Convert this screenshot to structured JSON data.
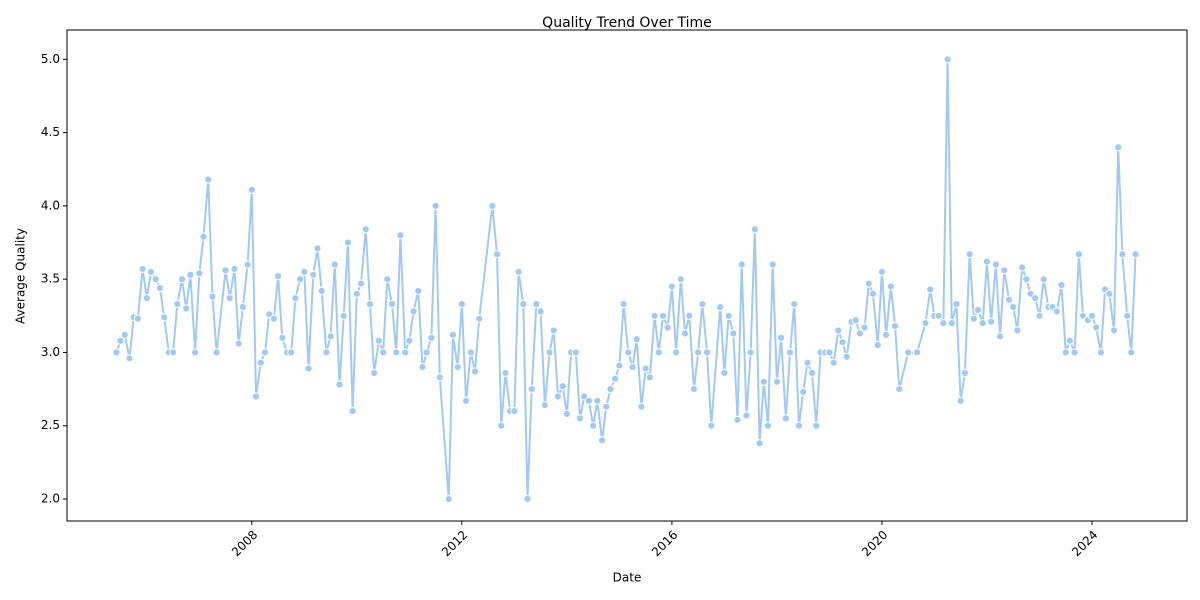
{
  "chart_data": {
    "type": "line",
    "title": "Quality Trend Over Time",
    "x_label": "Date",
    "y_label": "Average Quality",
    "xlim": [
      2004.48,
      2025.81
    ],
    "xticks": [
      2008,
      2012,
      2016,
      2020,
      2024
    ],
    "ylim": [
      1.85,
      5.2
    ],
    "yticks": [
      {
        "value": 2,
        "label": "2.0"
      },
      {
        "value": 2.5,
        "label": "2.5"
      },
      {
        "value": 3,
        "label": "3.0"
      },
      {
        "value": 3.5,
        "label": "3.5"
      },
      {
        "value": 4,
        "label": "4.0"
      },
      {
        "value": 4.5,
        "label": "4.5"
      },
      {
        "value": 5,
        "label": "5.0"
      }
    ],
    "grid": false,
    "x": [
      2005.42,
      2005.5,
      2005.58,
      2005.67,
      2005.75,
      2005.83,
      2005.92,
      2006.0,
      2006.08,
      2006.17,
      2006.25,
      2006.33,
      2006.42,
      2006.5,
      2006.58,
      2006.67,
      2006.75,
      2006.83,
      2006.92,
      2007.0,
      2007.08,
      2007.17,
      2007.25,
      2007.33,
      2007.5,
      2007.58,
      2007.67,
      2007.75,
      2007.83,
      2007.92,
      2008.0,
      2008.08,
      2008.17,
      2008.25,
      2008.33,
      2008.42,
      2008.5,
      2008.58,
      2008.67,
      2008.75,
      2008.83,
      2008.92,
      2009.0,
      2009.08,
      2009.17,
      2009.25,
      2009.33,
      2009.42,
      2009.5,
      2009.58,
      2009.67,
      2009.75,
      2009.83,
      2009.92,
      2010.0,
      2010.08,
      2010.17,
      2010.25,
      2010.33,
      2010.42,
      2010.5,
      2010.58,
      2010.67,
      2010.75,
      2010.83,
      2010.92,
      2011.0,
      2011.08,
      2011.17,
      2011.25,
      2011.33,
      2011.42,
      2011.5,
      2011.58,
      2011.75,
      2011.83,
      2011.92,
      2012.0,
      2012.08,
      2012.17,
      2012.25,
      2012.33,
      2012.58,
      2012.67,
      2012.75,
      2012.83,
      2012.92,
      2013.0,
      2013.08,
      2013.17,
      2013.25,
      2013.33,
      2013.42,
      2013.5,
      2013.58,
      2013.67,
      2013.75,
      2013.83,
      2013.92,
      2014.0,
      2014.08,
      2014.17,
      2014.25,
      2014.33,
      2014.42,
      2014.5,
      2014.58,
      2014.67,
      2014.75,
      2014.83,
      2014.92,
      2015.0,
      2015.08,
      2015.17,
      2015.25,
      2015.33,
      2015.42,
      2015.5,
      2015.58,
      2015.67,
      2015.75,
      2015.83,
      2015.92,
      2016.0,
      2016.08,
      2016.17,
      2016.25,
      2016.33,
      2016.42,
      2016.5,
      2016.58,
      2016.67,
      2016.75,
      2016.92,
      2017.0,
      2017.08,
      2017.17,
      2017.25,
      2017.33,
      2017.42,
      2017.5,
      2017.58,
      2017.67,
      2017.75,
      2017.83,
      2017.92,
      2018.0,
      2018.08,
      2018.17,
      2018.25,
      2018.33,
      2018.42,
      2018.5,
      2018.58,
      2018.67,
      2018.75,
      2018.83,
      2018.92,
      2019.0,
      2019.08,
      2019.17,
      2019.25,
      2019.33,
      2019.42,
      2019.5,
      2019.58,
      2019.67,
      2019.75,
      2019.83,
      2019.92,
      2020.0,
      2020.08,
      2020.17,
      2020.25,
      2020.33,
      2020.5,
      2020.67,
      2020.83,
      2020.92,
      2021.0,
      2021.08,
      2021.17,
      2021.25,
      2021.33,
      2021.42,
      2021.5,
      2021.58,
      2021.67,
      2021.75,
      2021.83,
      2021.92,
      2022.0,
      2022.08,
      2022.17,
      2022.25,
      2022.33,
      2022.42,
      2022.5,
      2022.58,
      2022.67,
      2022.75,
      2022.83,
      2022.92,
      2023.0,
      2023.08,
      2023.17,
      2023.25,
      2023.33,
      2023.42,
      2023.5,
      2023.58,
      2023.67,
      2023.75,
      2023.83,
      2023.92,
      2024.0,
      2024.08,
      2024.17,
      2024.25,
      2024.33,
      2024.42,
      2024.5,
      2024.58,
      2024.67,
      2024.75,
      2024.83
    ],
    "series": [
      {
        "name": "Average Quality",
        "color": "#a1c9f4",
        "values": [
          3.0,
          3.08,
          3.12,
          2.96,
          3.24,
          3.23,
          3.57,
          3.37,
          3.55,
          3.5,
          3.44,
          3.24,
          3.0,
          3.0,
          3.33,
          3.5,
          3.3,
          3.53,
          3.0,
          3.54,
          3.79,
          4.18,
          3.38,
          3.0,
          3.56,
          3.37,
          3.57,
          3.06,
          3.31,
          3.6,
          4.11,
          2.7,
          2.93,
          3.0,
          3.26,
          3.23,
          3.52,
          3.1,
          3.0,
          3.0,
          3.37,
          3.5,
          3.55,
          2.89,
          3.53,
          3.71,
          3.42,
          3.0,
          3.11,
          3.6,
          2.78,
          3.25,
          3.75,
          2.6,
          3.4,
          3.47,
          3.84,
          3.33,
          2.86,
          3.08,
          3.0,
          3.5,
          3.33,
          3.0,
          3.8,
          3.0,
          3.08,
          3.28,
          3.42,
          2.9,
          3.0,
          3.1,
          4.0,
          2.83,
          2.0,
          3.12,
          2.9,
          3.33,
          2.67,
          3.0,
          2.87,
          3.23,
          4.0,
          3.67,
          2.5,
          2.86,
          2.6,
          2.6,
          3.55,
          3.33,
          2.0,
          2.75,
          3.33,
          3.28,
          2.64,
          3.0,
          3.15,
          2.7,
          2.77,
          2.58,
          3.0,
          3.0,
          2.55,
          2.7,
          2.67,
          2.5,
          2.67,
          2.4,
          2.63,
          2.75,
          2.82,
          2.91,
          3.33,
          3.0,
          2.9,
          3.09,
          2.63,
          2.89,
          2.83,
          3.25,
          3.0,
          3.25,
          3.17,
          3.45,
          3.0,
          3.5,
          3.13,
          3.25,
          2.75,
          3.0,
          3.33,
          3.0,
          2.5,
          3.31,
          2.86,
          3.25,
          3.13,
          2.54,
          3.6,
          2.57,
          3.0,
          3.84,
          2.38,
          2.8,
          2.5,
          3.6,
          2.8,
          3.1,
          2.55,
          3.0,
          3.33,
          2.5,
          2.73,
          2.93,
          2.86,
          2.5,
          3.0,
          3.0,
          3.0,
          2.93,
          3.15,
          3.07,
          2.97,
          3.21,
          3.22,
          3.13,
          3.17,
          3.47,
          3.4,
          3.05,
          3.55,
          3.12,
          3.45,
          3.18,
          2.75,
          3.0,
          3.0,
          3.2,
          3.43,
          3.25,
          3.25,
          3.2,
          5.0,
          3.2,
          3.33,
          2.67,
          2.86,
          3.67,
          3.23,
          3.29,
          3.2,
          3.62,
          3.21,
          3.6,
          3.11,
          3.56,
          3.36,
          3.31,
          3.15,
          3.58,
          3.5,
          3.4,
          3.37,
          3.25,
          3.5,
          3.31,
          3.31,
          3.28,
          3.46,
          3.0,
          3.08,
          3.0,
          3.67,
          3.25,
          3.22,
          3.25,
          3.17,
          3.0,
          3.43,
          3.4,
          3.15,
          4.4,
          3.67,
          3.25,
          3.0,
          3.67
        ]
      }
    ]
  }
}
